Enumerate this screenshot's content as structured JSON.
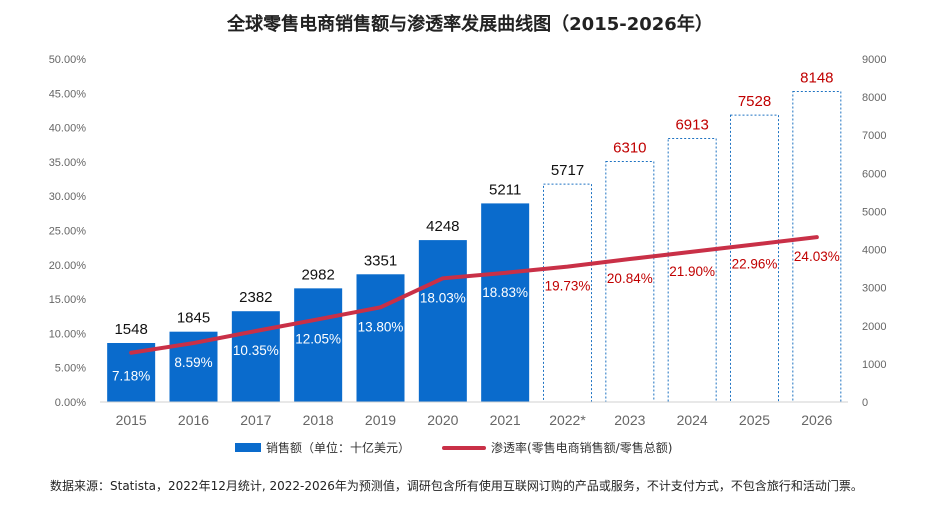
{
  "title": "全球零售电商销售额与渗透率发展曲线图（2015-2026年）",
  "source": "数据来源：Statista，2022年12月统计, 2022-2026年为预测值，调研包含所有使用互联网订购的产品或服务，不计支付方式，不包含旅行和活动门票。",
  "colors": {
    "bar": "#0a6bcc",
    "line": "#c93047",
    "forecast_label": "#c00000",
    "forecast_border": "#1d72c2"
  },
  "chart_data": {
    "type": "bar+line",
    "categories": [
      "2015",
      "2016",
      "2017",
      "2018",
      "2019",
      "2020",
      "2021",
      "2022*",
      "2023",
      "2024",
      "2025",
      "2026"
    ],
    "series": [
      {
        "name": "销售额（单位：十亿美元）",
        "type": "bar",
        "axis": "right",
        "values": [
          1548,
          1845,
          2382,
          2982,
          3351,
          4248,
          5211,
          5717,
          6310,
          6913,
          7528,
          8148
        ],
        "labels": [
          "1548",
          "1845",
          "2382",
          "2982",
          "3351",
          "4248",
          "5211",
          "5717",
          "6310",
          "6913",
          "7528",
          "8148"
        ],
        "forecast_from_index": 7
      },
      {
        "name": "渗透率(零售电商销售额/零售总额)",
        "type": "line",
        "axis": "left",
        "values": [
          7.18,
          8.59,
          10.35,
          12.05,
          13.8,
          18.03,
          18.83,
          19.73,
          20.84,
          21.9,
          22.96,
          24.03
        ],
        "labels": [
          "7.18%",
          "8.59%",
          "10.35%",
          "12.05%",
          "13.80%",
          "18.03%",
          "18.83%",
          "19.73%",
          "20.84%",
          "21.90%",
          "22.96%",
          "24.03%"
        ]
      }
    ],
    "left_axis": {
      "min": 0,
      "max": 50,
      "ticks": [
        "0.00%",
        "5.00%",
        "10.00%",
        "15.00%",
        "20.00%",
        "25.00%",
        "30.00%",
        "35.00%",
        "40.00%",
        "45.00%",
        "50.00%"
      ]
    },
    "right_axis": {
      "min": 0,
      "max": 9000,
      "ticks": [
        "0",
        "1000",
        "2000",
        "3000",
        "4000",
        "5000",
        "6000",
        "7000",
        "8000",
        "9000"
      ]
    },
    "grid": false,
    "legend_position": "bottom"
  }
}
